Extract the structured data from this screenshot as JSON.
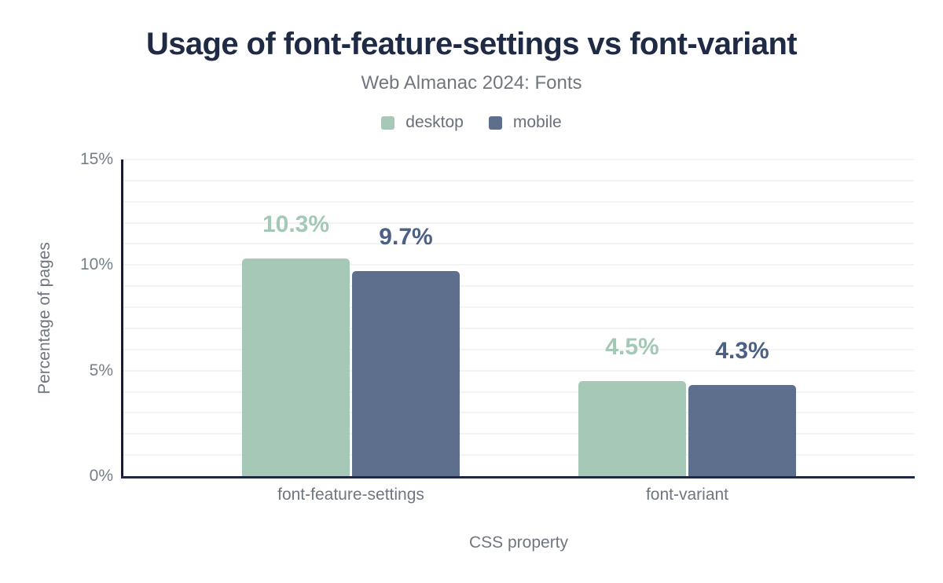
{
  "chart": {
    "title": "Usage of font-feature-settings vs font-variant",
    "subtitle": "Web Almanac 2024: Fonts"
  },
  "chart_data": {
    "type": "bar",
    "title": "Usage of font-feature-settings vs font-variant",
    "subtitle": "Web Almanac 2024: Fonts",
    "categories": [
      "font-feature-settings",
      "font-variant"
    ],
    "series": [
      {
        "name": "desktop",
        "color": "#a6c9b7",
        "label_color": "#a4c8b6",
        "values": [
          10.3,
          4.5
        ],
        "value_labels": [
          "10.3%",
          "4.5%"
        ]
      },
      {
        "name": "mobile",
        "color": "#5e6f8e",
        "label_color": "#4c5f84",
        "values": [
          9.7,
          4.3
        ],
        "value_labels": [
          "9.7%",
          "4.3%"
        ]
      }
    ],
    "xlabel": "CSS property",
    "ylabel": "Percentage of pages",
    "ylim": [
      0,
      15
    ],
    "yticks": [
      {
        "value": 0,
        "label": "0%"
      },
      {
        "value": 5,
        "label": "5%"
      },
      {
        "value": 10,
        "label": "10%"
      },
      {
        "value": 15,
        "label": "15%"
      }
    ],
    "grid": "on",
    "grid_interval": 1,
    "legend_position": "top",
    "colors": {
      "title": "#1f2a44",
      "subtitle_text": "#71767e",
      "axis_line": "#1e2945",
      "gridline": "#f3f3f3",
      "tick_text": "#767e8a"
    }
  }
}
